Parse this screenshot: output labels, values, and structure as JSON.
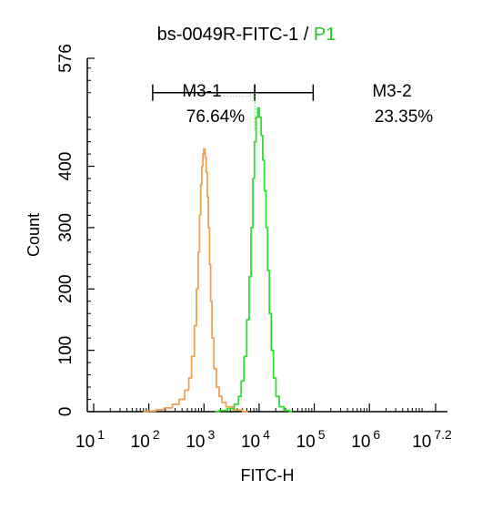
{
  "chart_data": {
    "type": "line",
    "title": {
      "main": "bs-0049R-FITC-1",
      "separator": " / ",
      "gate": "P1",
      "gate_color": "#22cc22"
    },
    "xlabel": "FITC-H",
    "ylabel": "Count",
    "x_scale": "log10",
    "xlim": [
      1,
      7.2
    ],
    "ylim": [
      0,
      576
    ],
    "x_ticks": [
      {
        "value": 1,
        "base": "10",
        "exp": "1"
      },
      {
        "value": 2,
        "base": "10",
        "exp": "2"
      },
      {
        "value": 3,
        "base": "10",
        "exp": "3"
      },
      {
        "value": 4,
        "base": "10",
        "exp": "4"
      },
      {
        "value": 5,
        "base": "10",
        "exp": "5"
      },
      {
        "value": 6,
        "base": "10",
        "exp": "6"
      },
      {
        "value": 7.2,
        "base": "10",
        "exp": "7.2"
      }
    ],
    "y_ticks": [
      {
        "value": 0,
        "label": "0"
      },
      {
        "value": 100,
        "label": "100"
      },
      {
        "value": 200,
        "label": "200"
      },
      {
        "value": 300,
        "label": "300"
      },
      {
        "value": 400,
        "label": "400"
      },
      {
        "value": 576,
        "label": "576"
      }
    ],
    "grid": false,
    "series": [
      {
        "color": "#f0a050",
        "points": [
          [
            1.9,
            0
          ],
          [
            2.05,
            1
          ],
          [
            2.2,
            3
          ],
          [
            2.35,
            6
          ],
          [
            2.5,
            12
          ],
          [
            2.6,
            20
          ],
          [
            2.7,
            35
          ],
          [
            2.75,
            55
          ],
          [
            2.8,
            90
          ],
          [
            2.85,
            140
          ],
          [
            2.88,
            200
          ],
          [
            2.91,
            260
          ],
          [
            2.93,
            320
          ],
          [
            2.95,
            370
          ],
          [
            2.97,
            400
          ],
          [
            2.99,
            420
          ],
          [
            3.0,
            428
          ],
          [
            3.01,
            428
          ],
          [
            3.03,
            415
          ],
          [
            3.05,
            390
          ],
          [
            3.07,
            350
          ],
          [
            3.09,
            300
          ],
          [
            3.11,
            240
          ],
          [
            3.13,
            180
          ],
          [
            3.16,
            120
          ],
          [
            3.2,
            70
          ],
          [
            3.25,
            40
          ],
          [
            3.3,
            25
          ],
          [
            3.35,
            15
          ],
          [
            3.45,
            8
          ],
          [
            3.6,
            3
          ],
          [
            3.8,
            0
          ]
        ]
      },
      {
        "color": "#33dd33",
        "points": [
          [
            3.2,
            0
          ],
          [
            3.35,
            2
          ],
          [
            3.5,
            5
          ],
          [
            3.6,
            12
          ],
          [
            3.65,
            25
          ],
          [
            3.7,
            50
          ],
          [
            3.75,
            90
          ],
          [
            3.8,
            150
          ],
          [
            3.84,
            220
          ],
          [
            3.87,
            300
          ],
          [
            3.9,
            380
          ],
          [
            3.93,
            440
          ],
          [
            3.96,
            480
          ],
          [
            3.99,
            495
          ],
          [
            4.02,
            480
          ],
          [
            4.05,
            450
          ],
          [
            4.08,
            410
          ],
          [
            4.11,
            360
          ],
          [
            4.14,
            300
          ],
          [
            4.17,
            230
          ],
          [
            4.2,
            160
          ],
          [
            4.24,
            100
          ],
          [
            4.28,
            55
          ],
          [
            4.33,
            25
          ],
          [
            4.4,
            8
          ],
          [
            4.5,
            2
          ],
          [
            4.6,
            0
          ]
        ]
      }
    ],
    "gates": [
      {
        "name": "M3-1",
        "percent": "76.64%",
        "x_start": 2.07,
        "x_end": 3.92,
        "y": 520
      },
      {
        "name": "M3-2",
        "percent": "23.35%",
        "x_start": 3.92,
        "x_end": 4.98,
        "y": 520
      }
    ]
  }
}
